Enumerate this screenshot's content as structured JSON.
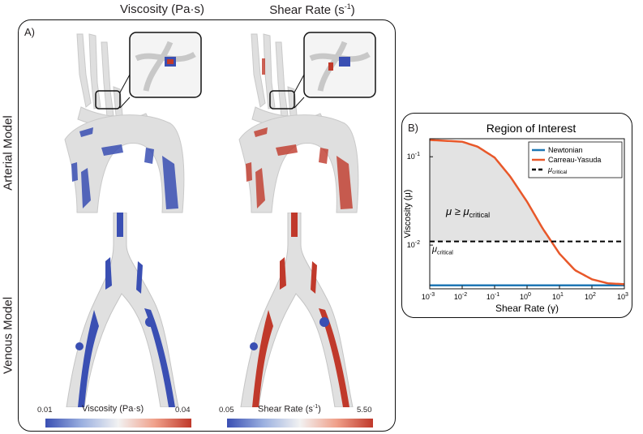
{
  "columns": {
    "viscosity_html": "Viscosity (Pa·s)",
    "shear_text": "Shear Rate (s",
    "shear_sup": "-1",
    "shear_close": ")"
  },
  "panelA": {
    "label": "A)",
    "rows": {
      "arterial": "Arterial Model",
      "venous": "Venous Model"
    },
    "colorbars": [
      {
        "title": "Viscosity (Pa·s)",
        "min": "0.01",
        "max": "0.04"
      },
      {
        "title_text": "Shear Rate (s",
        "title_sup": "-1",
        "title_close": ")",
        "min": "0.05",
        "max": "5.50"
      }
    ],
    "colors": {
      "low": "#3a4fb3",
      "mid": "#f2f2f2",
      "high": "#c0392b",
      "vessel": "#d9d9d9"
    }
  },
  "panelB": {
    "label": "B)",
    "chart_data": {
      "type": "line",
      "title": "Region of Interest",
      "xlabel": "Shear Rate",
      "xlabel_symbol": "(γ)",
      "ylabel": "Viscosity",
      "ylabel_symbol": "(μ)",
      "x_scale": "log",
      "y_scale": "log",
      "xlim": [
        0.001,
        1000
      ],
      "ylim": [
        0.0032,
        0.16
      ],
      "x_ticks": [
        {
          "base": "10",
          "exp": "-3",
          "value": 0.001
        },
        {
          "base": "10",
          "exp": "-2",
          "value": 0.01
        },
        {
          "base": "10",
          "exp": "-1",
          "value": 0.1
        },
        {
          "base": "10",
          "exp": "0",
          "value": 1
        },
        {
          "base": "10",
          "exp": "1",
          "value": 10
        },
        {
          "base": "10",
          "exp": "2",
          "value": 100
        },
        {
          "base": "10",
          "exp": "3",
          "value": 1000
        }
      ],
      "y_ticks": [
        {
          "base": "10",
          "exp": "-2",
          "value": 0.01
        },
        {
          "base": "10",
          "exp": "-1",
          "value": 0.1
        }
      ],
      "series": [
        {
          "name": "Newtonian",
          "color": "#1f77b4",
          "style": "solid",
          "x": [
            0.001,
            1000
          ],
          "y": [
            0.0035,
            0.0035
          ]
        },
        {
          "name": "Carreau-Yasuda",
          "color": "#e8582a",
          "style": "solid",
          "x": [
            0.001,
            0.01,
            0.03,
            0.1,
            0.3,
            1,
            3,
            10,
            30,
            100,
            300,
            1000
          ],
          "y": [
            0.155,
            0.148,
            0.13,
            0.098,
            0.06,
            0.031,
            0.0155,
            0.008,
            0.0052,
            0.0041,
            0.0037,
            0.0036
          ]
        },
        {
          "name_text": "μ",
          "name_sub": "critical",
          "color": "#000000",
          "style": "dashed",
          "x": [
            0.001,
            1000
          ],
          "y": [
            0.011,
            0.011
          ]
        }
      ],
      "annotations": [
        {
          "text": "μ ≥ μ",
          "sub": "critical",
          "region": "shaded"
        },
        {
          "text": "μ",
          "sub": "critical",
          "region": "below-line"
        }
      ],
      "shaded_region_color": "#e3e3e3",
      "legend": "top-right",
      "grid": false
    }
  }
}
